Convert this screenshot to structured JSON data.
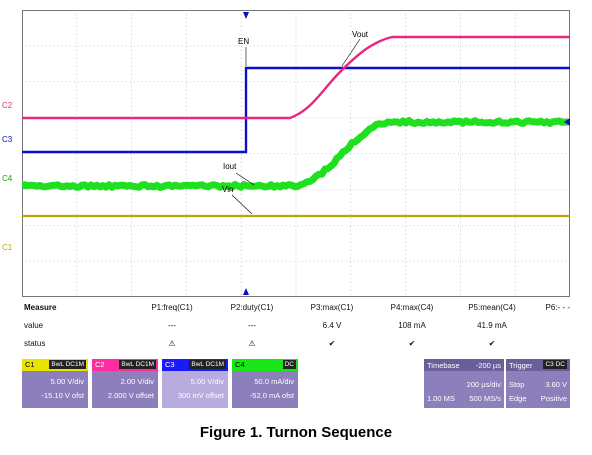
{
  "channels_left": {
    "c2": "C2",
    "c3": "C3",
    "c4": "C4",
    "c1": "C1"
  },
  "wave_labels": {
    "en": "EN",
    "vout": "Vout",
    "iout": "Iout",
    "vin": "Vin"
  },
  "measure": {
    "row_labels": {
      "measure": "Measure",
      "value": "value",
      "status": "status"
    },
    "params": [
      {
        "name": "P1:freq(C1)",
        "value": "---",
        "status": "⚠"
      },
      {
        "name": "P2:duty(C1)",
        "value": "---",
        "status": "⚠"
      },
      {
        "name": "P3:max(C1)",
        "value": "6.4 V",
        "status": "✔"
      },
      {
        "name": "P4:max(C4)",
        "value": "108 mA",
        "status": "✔"
      },
      {
        "name": "P5:mean(C4)",
        "value": "41.9 mA",
        "status": "✔"
      },
      {
        "name": "P6:- - -",
        "value": "",
        "status": ""
      }
    ]
  },
  "channel_boxes": [
    {
      "name": "C1",
      "coupling": "BwL DC1M",
      "scale": "5.00 V/div",
      "offset": "-15.10 V ofst",
      "color": "#e8e400"
    },
    {
      "name": "C2",
      "coupling": "BwL DC1M",
      "scale": "2.00 V/div",
      "offset": "2.000 V offset",
      "color": "#ff2ea0"
    },
    {
      "name": "C3",
      "coupling": "BwL DC1M",
      "scale": "5.00 V/div",
      "offset": "300 mV offset",
      "color": "#1a1aff"
    },
    {
      "name": "C4",
      "coupling": "DC",
      "scale": "50.0 mA/div",
      "offset": "-52.0 mA ofst",
      "color": "#19e619"
    }
  ],
  "timebase": {
    "title": "Timebase",
    "delay": "-200 µs",
    "per_div": "200 µs/div",
    "samples": "1.00 MS",
    "rate": "500 MS/s"
  },
  "trigger": {
    "title": "Trigger",
    "channel": "C3 DC",
    "mode": "Stop",
    "level": "3.60 V",
    "type": "Edge",
    "slope": "Positive"
  },
  "caption": "Figure 1. Turnon Sequence",
  "colors": {
    "c1": "#b8a800",
    "c2": "#e8287f",
    "c3": "#0a10c8",
    "c4": "#1ee01e"
  }
}
